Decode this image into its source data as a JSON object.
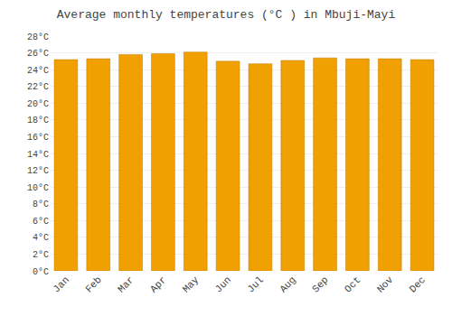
{
  "chart_data": {
    "type": "bar",
    "title": "Average monthly temperatures (°C ) in Mbuji-Mayi",
    "categories": [
      "Jan",
      "Feb",
      "Mar",
      "Apr",
      "May",
      "Jun",
      "Jul",
      "Aug",
      "Sep",
      "Oct",
      "Nov",
      "Dec"
    ],
    "values": [
      25.2,
      25.3,
      25.8,
      25.9,
      26.1,
      25.0,
      24.7,
      25.1,
      25.4,
      25.3,
      25.3,
      25.2
    ],
    "color": "#F0A000",
    "ylim": [
      0,
      28
    ],
    "yticks": [
      {
        "value": 0,
        "label": "0°C"
      },
      {
        "value": 2,
        "label": "2°C"
      },
      {
        "value": 4,
        "label": "4°C"
      },
      {
        "value": 6,
        "label": "6°C"
      },
      {
        "value": 8,
        "label": "8°C"
      },
      {
        "value": 10,
        "label": "10°C"
      },
      {
        "value": 12,
        "label": "12°C"
      },
      {
        "value": 14,
        "label": "14°C"
      },
      {
        "value": 16,
        "label": "16°C"
      },
      {
        "value": 18,
        "label": "18°C"
      },
      {
        "value": 20,
        "label": "20°C"
      },
      {
        "value": 22,
        "label": "22°C"
      },
      {
        "value": 24,
        "label": "24°C"
      },
      {
        "value": 26,
        "label": "26°C"
      },
      {
        "value": 28,
        "label": "28°C"
      }
    ],
    "grid": true
  }
}
